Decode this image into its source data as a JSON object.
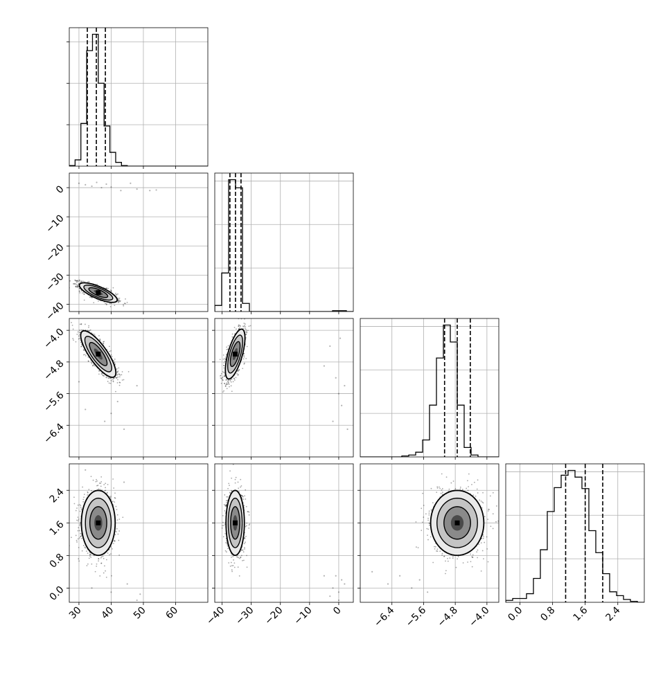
{
  "chart_data": {
    "type": "corner",
    "parameters": [
      {
        "index": 0,
        "range": [
          27,
          70
        ],
        "ticks": [
          30,
          40,
          50,
          60
        ],
        "tick_labels": [
          "30",
          "40",
          "50",
          "60"
        ],
        "quantiles": [
          32.6,
          35.4,
          38.2
        ],
        "hist_range": [
          27,
          45
        ],
        "hist": [
          0.05,
          0.5,
          3.4,
          9.2,
          10.5,
          6.6,
          3.2,
          1.1,
          0.3,
          0.05
        ],
        "hist_ticks": [
          3.3,
          6.6,
          9.9
        ]
      },
      {
        "index": 1,
        "range": [
          -42.5,
          5
        ],
        "ticks": [
          -40,
          -30,
          -20,
          -10,
          0
        ],
        "tick_labels": [
          "−40",
          "−30",
          "−20",
          "−10",
          "0"
        ],
        "quantiles": [
          -37.3,
          -35.4,
          -33.5
        ],
        "hist_range": [
          -42.5,
          5
        ],
        "hist": [
          0.3,
          1.9,
          6.5,
          6.1,
          0.4,
          0,
          0,
          0,
          0,
          0,
          0,
          0,
          0,
          0,
          0,
          0,
          0,
          0.04,
          0.04,
          0
        ],
        "hist_ticks": []
      },
      {
        "index": 2,
        "range": [
          -7.2,
          -3.7
        ],
        "ticks": [
          -6.4,
          -5.6,
          -4.8,
          -4.0
        ],
        "tick_labels": [
          "−6.4",
          "−5.6",
          "−4.8",
          "−4.0"
        ],
        "quantiles": [
          -5.07,
          -4.75,
          -4.42
        ],
        "hist_range": [
          -7.2,
          -3.7
        ],
        "hist": [
          0,
          0,
          0,
          0,
          0,
          0,
          0.01,
          0.02,
          0.05,
          0.18,
          0.55,
          1.05,
          1.4,
          1.22,
          0.55,
          0.1,
          0.02,
          0,
          0,
          0
        ],
        "hist_ticks": []
      },
      {
        "index": 3,
        "range": [
          -0.35,
          3.05
        ],
        "ticks": [
          0.0,
          0.8,
          1.6,
          2.4
        ],
        "tick_labels": [
          "0.0",
          "0.8",
          "1.6",
          "2.4"
        ],
        "quantiles": [
          1.12,
          1.6,
          2.03
        ],
        "hist_range": [
          -0.35,
          3.05
        ],
        "hist": [
          0.02,
          0.04,
          0.04,
          0.09,
          0.25,
          0.55,
          0.95,
          1.2,
          1.33,
          1.38,
          1.31,
          1.19,
          0.75,
          0.52,
          0.3,
          0.11,
          0.07,
          0.03,
          0.01,
          0
        ],
        "hist_ticks": []
      }
    ],
    "pairs": [
      {
        "x": 0,
        "y": 1,
        "center": [
          36,
          -36
        ],
        "sd": [
          2.8,
          1.6
        ],
        "corr": -0.75,
        "outliers": [
          [
            30,
            1.5
          ],
          [
            32,
            1
          ],
          [
            34,
            0.5
          ],
          [
            35.5,
            1.8
          ],
          [
            37,
            0
          ],
          [
            38.5,
            1.2
          ],
          [
            40,
            0.2
          ],
          [
            43,
            -1
          ],
          [
            46,
            1.5
          ],
          [
            48,
            -0.5
          ],
          [
            52,
            -1
          ],
          [
            54,
            -0.8
          ]
        ]
      },
      {
        "x": 0,
        "y": 2,
        "center": [
          36,
          -4.6
        ],
        "sd": [
          2.6,
          0.28
        ],
        "corr": -0.8,
        "outliers": [
          [
            38,
            -6.3
          ],
          [
            42,
            -5.8
          ],
          [
            44,
            -6.5
          ],
          [
            48,
            -5.4
          ],
          [
            30,
            -5.3
          ],
          [
            32,
            -6
          ],
          [
            40,
            -6.1
          ]
        ]
      },
      {
        "x": 0,
        "y": 3,
        "center": [
          36,
          1.6
        ],
        "sd": [
          2.5,
          0.38
        ],
        "corr": 0.0,
        "outliers": [
          [
            40,
            -0.1
          ],
          [
            45,
            0.1
          ],
          [
            49,
            -0.15
          ],
          [
            48,
            -0.3
          ],
          [
            34,
            0.0
          ],
          [
            32,
            2.9
          ],
          [
            44,
            2.6
          ]
        ]
      },
      {
        "x": 1,
        "y": 2,
        "center": [
          -35.5,
          -4.6
        ],
        "sd": [
          1.6,
          0.3
        ],
        "corr": 0.65,
        "outliers": [
          [
            -5,
            -4.9
          ],
          [
            -1,
            -5.2
          ],
          [
            0,
            -5.6
          ],
          [
            1,
            -5.9
          ],
          [
            2,
            -5.4
          ],
          [
            -3,
            -4.4
          ],
          [
            0.5,
            -4.2
          ],
          [
            3,
            -6.5
          ],
          [
            -2,
            -6.3
          ]
        ]
      },
      {
        "x": 1,
        "y": 3,
        "center": [
          -35.5,
          1.6
        ],
        "sd": [
          1.5,
          0.38
        ],
        "corr": 0.0,
        "outliers": [
          [
            -5,
            0.3
          ],
          [
            -2,
            0.0
          ],
          [
            0,
            -0.1
          ],
          [
            1,
            0.2
          ],
          [
            -1,
            0.3
          ],
          [
            0,
            -0.3
          ],
          [
            2,
            0.1
          ],
          [
            -3,
            -0.2
          ]
        ]
      },
      {
        "x": 2,
        "y": 3,
        "center": [
          -4.75,
          1.6
        ],
        "sd": [
          0.32,
          0.38
        ],
        "corr": 0.0,
        "outliers": [
          [
            -6.5,
            0.1
          ],
          [
            -5.9,
            0.0
          ],
          [
            -5.7,
            0.2
          ],
          [
            -6.9,
            0.4
          ],
          [
            -5.5,
            -0.1
          ],
          [
            -6.2,
            0.3
          ]
        ]
      }
    ],
    "grid": true
  }
}
